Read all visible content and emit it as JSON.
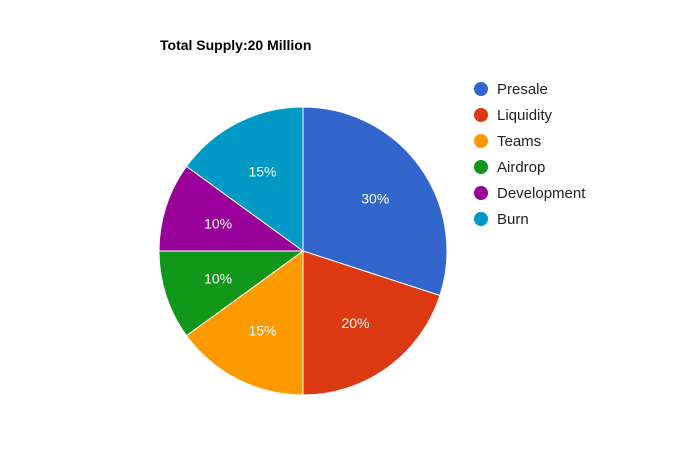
{
  "chart_data": {
    "type": "pie",
    "title": "Total Supply:20 Million",
    "legend_position": "right",
    "slices": [
      {
        "label": "Presale",
        "value": 30,
        "display": "30%",
        "color": "#3366cc"
      },
      {
        "label": "Liquidity",
        "value": 20,
        "display": "20%",
        "color": "#dc3912"
      },
      {
        "label": "Teams",
        "value": 15,
        "display": "15%",
        "color": "#ff9900"
      },
      {
        "label": "Airdrop",
        "value": 10,
        "display": "10%",
        "color": "#109618"
      },
      {
        "label": "Development",
        "value": 10,
        "display": "10%",
        "color": "#990099"
      },
      {
        "label": "Burn",
        "value": 15,
        "display": "15%",
        "color": "#0099c6"
      }
    ]
  }
}
